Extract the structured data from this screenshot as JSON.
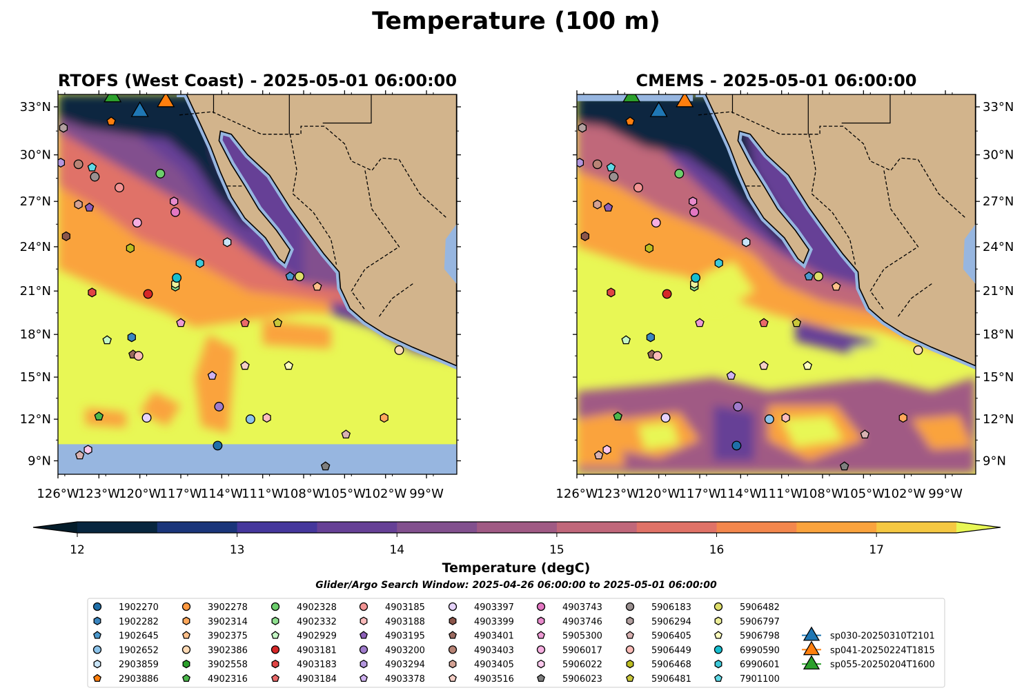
{
  "title": "Temperature (100 m)",
  "panels": [
    {
      "title": "RTOFS (West Coast) - 2025-05-01 06:00:00",
      "model": "rtofs"
    },
    {
      "title": "CMEMS - 2025-05-01 06:00:00",
      "model": "cmems"
    }
  ],
  "lon_ticks": [
    {
      "lon": -126,
      "label": "126°W"
    },
    {
      "lon": -123,
      "label": "123°W"
    },
    {
      "lon": -120,
      "label": "120°W"
    },
    {
      "lon": -117,
      "label": "117°W"
    },
    {
      "lon": -114,
      "label": "114°W"
    },
    {
      "lon": -111,
      "label": "111°W"
    },
    {
      "lon": -108,
      "label": "108°W"
    },
    {
      "lon": -105,
      "label": "105°W"
    },
    {
      "lon": -102,
      "label": "102°W"
    },
    {
      "lon": -99,
      "label": "99°W"
    }
  ],
  "lat_ticks": [
    {
      "lat": 33,
      "label": "33°N"
    },
    {
      "lat": 30,
      "label": "30°N"
    },
    {
      "lat": 27,
      "label": "27°N"
    },
    {
      "lat": 24,
      "label": "24°N"
    },
    {
      "lat": 21,
      "label": "21°N"
    },
    {
      "lat": 18,
      "label": "18°N"
    },
    {
      "lat": 15,
      "label": "15°N"
    },
    {
      "lat": 12,
      "label": "12°N"
    },
    {
      "lat": 9,
      "label": "9°N"
    }
  ],
  "chart_data": {
    "type": "heatmap",
    "title": "Temperature (100 m)",
    "extent": {
      "lon": [
        -126,
        -96.8
      ],
      "lat": [
        8.1,
        33.8
      ]
    },
    "colorbar": {
      "label": "Temperature (degC)",
      "min": 12,
      "max": 17.5,
      "step": 0.5,
      "ticks": [
        "12",
        "13",
        "14",
        "15",
        "16",
        "17"
      ],
      "colors": [
        "#08263f",
        "#1a357a",
        "#45379c",
        "#664096",
        "#82508e",
        "#a05a84",
        "#c0677a",
        "#e07267",
        "#f3874d",
        "#faa33d",
        "#f5c842"
      ],
      "under": "#041c2a",
      "over": "#e8f755"
    },
    "land_color": "#d2b48c",
    "water_mask_color": "#97b6e0"
  },
  "search_window": "Glider/Argo Search Window: 2025-04-26 06:00:00 to 2025-05-01 06:00:00",
  "legend": [
    {
      "label": "1902270",
      "marker": "circle",
      "color": "#1f6fa8"
    },
    {
      "label": "1902282",
      "marker": "hexagon",
      "color": "#3a85bf"
    },
    {
      "label": "1902645",
      "marker": "pentagon",
      "color": "#4b98cc"
    },
    {
      "label": "1902652",
      "marker": "circle",
      "color": "#8cc3ea"
    },
    {
      "label": "2903859",
      "marker": "hexagon",
      "color": "#c8e4f7"
    },
    {
      "label": "2903886",
      "marker": "pentagon",
      "color": "#ff7f0e"
    },
    {
      "label": "3902278",
      "marker": "circle",
      "color": "#ff9940"
    },
    {
      "label": "3902314",
      "marker": "hexagon",
      "color": "#ffa85c"
    },
    {
      "label": "3902375",
      "marker": "pentagon",
      "color": "#ffc08a"
    },
    {
      "label": "3902386",
      "marker": "circle",
      "color": "#ffdab5"
    },
    {
      "label": "3902558",
      "marker": "hexagon",
      "color": "#2ca02c"
    },
    {
      "label": "4902316",
      "marker": "pentagon",
      "color": "#4cb84c"
    },
    {
      "label": "4902328",
      "marker": "circle",
      "color": "#6ccf6c"
    },
    {
      "label": "4902332",
      "marker": "hexagon",
      "color": "#8fe08f"
    },
    {
      "label": "4902929",
      "marker": "pentagon",
      "color": "#c4f7c4"
    },
    {
      "label": "4903181",
      "marker": "circle",
      "color": "#d62728"
    },
    {
      "label": "4903183",
      "marker": "hexagon",
      "color": "#e04444"
    },
    {
      "label": "4903184",
      "marker": "pentagon",
      "color": "#ea6a6a"
    },
    {
      "label": "4903185",
      "marker": "circle",
      "color": "#f29494"
    },
    {
      "label": "4903188",
      "marker": "hexagon",
      "color": "#fbbcbc"
    },
    {
      "label": "4903195",
      "marker": "pentagon",
      "color": "#8c5fb8"
    },
    {
      "label": "4903200",
      "marker": "circle",
      "color": "#a07ccc"
    },
    {
      "label": "4903294",
      "marker": "hexagon",
      "color": "#b497de"
    },
    {
      "label": "4903378",
      "marker": "pentagon",
      "color": "#cfb2f0"
    },
    {
      "label": "4903397",
      "marker": "circle",
      "color": "#e6d3fb"
    },
    {
      "label": "4903399",
      "marker": "hexagon",
      "color": "#8c564b"
    },
    {
      "label": "4903401",
      "marker": "pentagon",
      "color": "#9b6a5f"
    },
    {
      "label": "4903403",
      "marker": "circle",
      "color": "#b88476"
    },
    {
      "label": "4903405",
      "marker": "hexagon",
      "color": "#d4a294"
    },
    {
      "label": "4903516",
      "marker": "pentagon",
      "color": "#f5cfc6"
    },
    {
      "label": "4903743",
      "marker": "circle",
      "color": "#e377c2"
    },
    {
      "label": "4903746",
      "marker": "hexagon",
      "color": "#e88bcc"
    },
    {
      "label": "5905300",
      "marker": "pentagon",
      "color": "#ee9ad4"
    },
    {
      "label": "5906017",
      "marker": "circle",
      "color": "#f6aee0"
    },
    {
      "label": "5906022",
      "marker": "hexagon",
      "color": "#fbc8ec"
    },
    {
      "label": "5906023",
      "marker": "pentagon",
      "color": "#7f7f7f"
    },
    {
      "label": "5906183",
      "marker": "circle",
      "color": "#9a9090"
    },
    {
      "label": "5906294",
      "marker": "hexagon",
      "color": "#b3a0a0"
    },
    {
      "label": "5906405",
      "marker": "pentagon",
      "color": "#d9b2b2"
    },
    {
      "label": "5906449",
      "marker": "circle",
      "color": "#fbbcb8"
    },
    {
      "label": "5906468",
      "marker": "hexagon",
      "color": "#bcbd22"
    },
    {
      "label": "5906481",
      "marker": "pentagon",
      "color": "#c9c73a"
    },
    {
      "label": "5906482",
      "marker": "circle",
      "color": "#dede6a"
    },
    {
      "label": "5906797",
      "marker": "hexagon",
      "color": "#eeef9a"
    },
    {
      "label": "5906798",
      "marker": "pentagon",
      "color": "#fefebe"
    },
    {
      "label": "6990590",
      "marker": "circle",
      "color": "#17becf"
    },
    {
      "label": "6990601",
      "marker": "hexagon",
      "color": "#3dc9d9"
    },
    {
      "label": "7901100",
      "marker": "pentagon",
      "color": "#5fd9e6"
    },
    {
      "label": "sp030-20250310T2101",
      "marker": "triangle",
      "color": "#1f77b4"
    },
    {
      "label": "sp041-20250224T1815",
      "marker": "triangle",
      "color": "#ff7f0e"
    },
    {
      "label": "sp055-20250204T1600",
      "marker": "triangle",
      "color": "#2ca02c"
    }
  ],
  "markers": [
    {
      "id": "sp055-20250204T1600",
      "lon": -122.0,
      "lat": 33.6
    },
    {
      "id": "sp030-20250310T2101",
      "lon": -120.0,
      "lat": 32.7
    },
    {
      "id": "sp041-20250224T1815",
      "lon": -118.1,
      "lat": 33.3
    },
    {
      "id": "2903886",
      "lon": -122.1,
      "lat": 32.1
    },
    {
      "id": "5906294",
      "lon": -125.6,
      "lat": 31.7
    },
    {
      "id": "4903294",
      "lon": -125.8,
      "lat": 29.5
    },
    {
      "id": "4903403",
      "lon": -124.5,
      "lat": 29.4
    },
    {
      "id": "7901100",
      "lon": -123.5,
      "lat": 29.2
    },
    {
      "id": "5906183",
      "lon": -123.3,
      "lat": 28.6
    },
    {
      "id": "4902328",
      "lon": -118.5,
      "lat": 28.8
    },
    {
      "id": "4903185",
      "lon": -121.5,
      "lat": 27.9
    },
    {
      "id": "4903746",
      "lon": -117.5,
      "lat": 27.0
    },
    {
      "id": "4903743",
      "lon": -117.4,
      "lat": 26.3
    },
    {
      "id": "4903405",
      "lon": -124.5,
      "lat": 26.8
    },
    {
      "id": "4903195",
      "lon": -123.7,
      "lat": 26.6
    },
    {
      "id": "5906017",
      "lon": -120.2,
      "lat": 25.6
    },
    {
      "id": "4903399",
      "lon": -125.4,
      "lat": 24.7
    },
    {
      "id": "2903859",
      "lon": -113.6,
      "lat": 24.3
    },
    {
      "id": "5906468",
      "lon": -120.7,
      "lat": 23.9
    },
    {
      "id": "6990601",
      "lon": -115.6,
      "lat": 22.9
    },
    {
      "id": "4902332",
      "lon": -117.4,
      "lat": 21.3
    },
    {
      "id": "5906797",
      "lon": -117.4,
      "lat": 21.5
    },
    {
      "id": "6990590",
      "lon": -117.3,
      "lat": 21.9
    },
    {
      "id": "1902645",
      "lon": -109.0,
      "lat": 22.0
    },
    {
      "id": "5906482",
      "lon": -108.3,
      "lat": 22.0
    },
    {
      "id": "3902375",
      "lon": -107.0,
      "lat": 21.3
    },
    {
      "id": "4903183",
      "lon": -123.5,
      "lat": 20.9
    },
    {
      "id": "4903181",
      "lon": -119.4,
      "lat": 20.8
    },
    {
      "id": "5905300",
      "lon": -117.0,
      "lat": 18.8
    },
    {
      "id": "4903184",
      "lon": -112.3,
      "lat": 18.8
    },
    {
      "id": "5906481",
      "lon": -109.9,
      "lat": 18.8
    },
    {
      "id": "4902929",
      "lon": -122.4,
      "lat": 17.6
    },
    {
      "id": "1902282",
      "lon": -120.6,
      "lat": 17.8
    },
    {
      "id": "4903401",
      "lon": -120.5,
      "lat": 16.6
    },
    {
      "id": "5906449",
      "lon": -120.1,
      "lat": 16.5
    },
    {
      "id": "4903516",
      "lon": -112.3,
      "lat": 15.8
    },
    {
      "id": "5906798",
      "lon": -109.1,
      "lat": 15.8
    },
    {
      "id": "4903378",
      "lon": -114.7,
      "lat": 15.1
    },
    {
      "id": "3902386",
      "lon": -101.0,
      "lat": 16.9
    },
    {
      "id": "4903200",
      "lon": -114.2,
      "lat": 12.9
    },
    {
      "id": "4902316",
      "lon": -123.0,
      "lat": 12.2
    },
    {
      "id": "4903397",
      "lon": -119.5,
      "lat": 12.1
    },
    {
      "id": "1902652",
      "lon": -111.9,
      "lat": 12.0
    },
    {
      "id": "4903188",
      "lon": -110.7,
      "lat": 12.1
    },
    {
      "id": "3902314",
      "lon": -102.1,
      "lat": 12.1
    },
    {
      "id": "5906405",
      "lon": -104.9,
      "lat": 10.9
    },
    {
      "id": "1902270",
      "lon": -114.3,
      "lat": 10.1
    },
    {
      "id": "5906022",
      "lon": -123.8,
      "lat": 9.8
    },
    {
      "id": "5906405",
      "lon": -124.4,
      "lat": 9.4
    },
    {
      "id": "5906023",
      "lon": -106.4,
      "lat": 8.6
    }
  ]
}
